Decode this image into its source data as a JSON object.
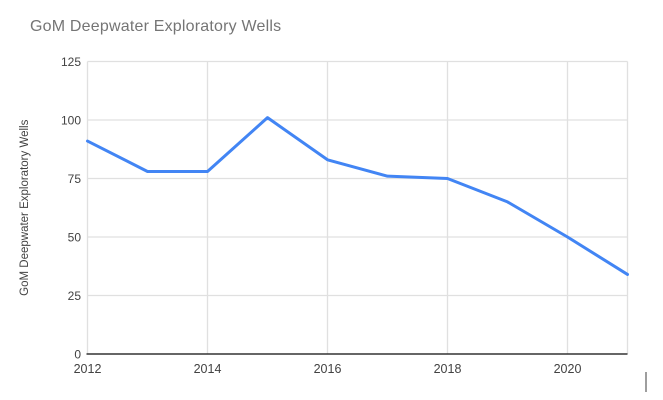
{
  "chart_data": {
    "type": "line",
    "title": "GoM Deepwater Exploratory Wells",
    "xlabel": "",
    "ylabel": "GoM Deepwater Exploratory Wells",
    "series": [
      {
        "name": "GoM Deepwater Exploratory Wells",
        "x": [
          2012,
          2013,
          2014,
          2015,
          2016,
          2017,
          2018,
          2019,
          2020,
          2021
        ],
        "values": [
          91,
          78,
          78,
          101,
          83,
          76,
          75,
          65,
          50,
          34
        ]
      }
    ],
    "xlim": [
      2012,
      2021
    ],
    "ylim": [
      0,
      125
    ],
    "xticks": [
      2012,
      2014,
      2016,
      2018,
      2020
    ],
    "yticks": [
      0,
      25,
      50,
      75,
      100,
      125
    ],
    "grid": true,
    "legend_position": "none",
    "colors": {
      "line": "#4285f4",
      "grid": "#e0e0e0",
      "axis_line": "#333333",
      "title_text": "#757575",
      "tick_text": "#424242",
      "background": "#ffffff"
    }
  }
}
